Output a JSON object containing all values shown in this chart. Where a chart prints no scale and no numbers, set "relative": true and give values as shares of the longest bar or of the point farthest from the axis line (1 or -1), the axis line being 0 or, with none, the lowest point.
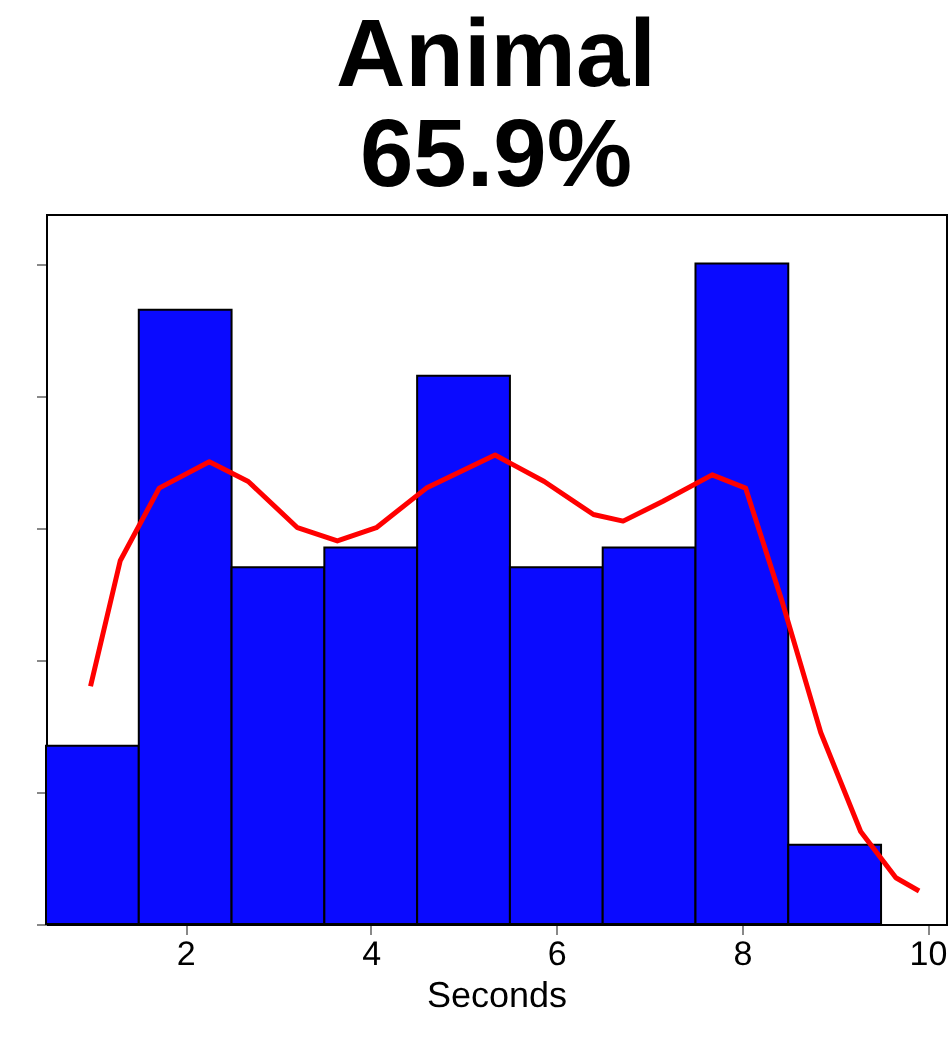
{
  "chart_data": {
    "type": "histogram",
    "title": "Animal\n65.9%",
    "xlabel": "Seconds",
    "relative": true,
    "bins": [
      0.5,
      1.5,
      2.5,
      3.5,
      4.5,
      5.5,
      6.5,
      7.5,
      8.5,
      9.5
    ],
    "values": [
      0.27,
      0.93,
      0.54,
      0.57,
      0.83,
      0.54,
      0.57,
      1,
      0.12
    ],
    "color": "#0a0aff",
    "series": [
      {
        "type": "line",
        "color": "#ff0000",
        "x": [
          0.98,
          1.3,
          1.72,
          2.26,
          2.68,
          3.21,
          3.64,
          4.06,
          4.6,
          5.34,
          5.87,
          6.4,
          6.72,
          7.15,
          7.68,
          8.04,
          8.43,
          8.85,
          9.28,
          9.66,
          9.91
        ],
        "values": [
          0.36,
          0.55,
          0.66,
          0.7,
          0.67,
          0.6,
          0.58,
          0.6,
          0.66,
          0.71,
          0.67,
          0.62,
          0.61,
          0.64,
          0.68,
          0.66,
          0.49,
          0.29,
          0.14,
          0.07,
          0.05
        ]
      }
    ],
    "xlim": [
      0.5,
      10.2
    ],
    "xticks": [
      2,
      4,
      6,
      8,
      10
    ],
    "grid": false
  }
}
